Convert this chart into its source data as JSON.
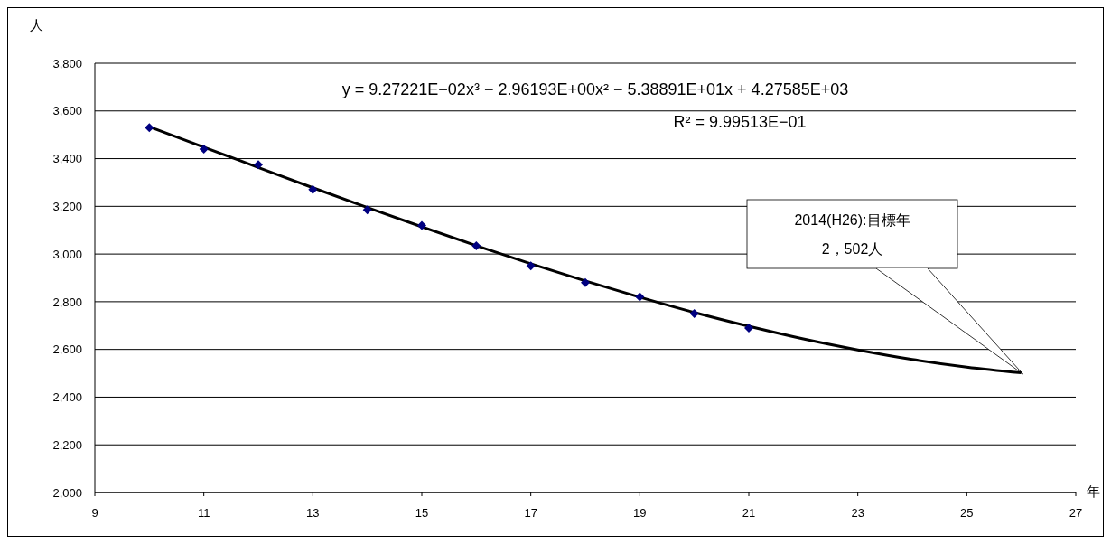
{
  "chart_data": {
    "type": "scatter",
    "xlabel": "年",
    "ylabel": "人",
    "xlim": [
      9,
      27
    ],
    "xticks": [
      9,
      11,
      13,
      15,
      17,
      19,
      21,
      23,
      25,
      27
    ],
    "ylim": [
      2000,
      3800
    ],
    "yticks": [
      {
        "value": 2000,
        "label": "2,000"
      },
      {
        "value": 2200,
        "label": "2,200"
      },
      {
        "value": 2400,
        "label": "2,400"
      },
      {
        "value": 2600,
        "label": "2,600"
      },
      {
        "value": 2800,
        "label": "2,800"
      },
      {
        "value": 3000,
        "label": "3,000"
      },
      {
        "value": 3200,
        "label": "3,200"
      },
      {
        "value": 3400,
        "label": "3,400"
      },
      {
        "value": 3600,
        "label": "3,600"
      },
      {
        "value": 3800,
        "label": "3,800"
      }
    ],
    "grid": "y",
    "legend": false,
    "series": [
      {
        "marker": "diamond",
        "color": "#000080",
        "x": [
          10,
          11,
          12,
          13,
          14,
          15,
          16,
          17,
          18,
          19,
          20,
          21
        ],
        "values": [
          3530,
          3440,
          3375,
          3270,
          3185,
          3120,
          3035,
          2950,
          2880,
          2820,
          2750,
          2690
        ]
      },
      {
        "type": "line",
        "marker": "none",
        "line_style": "solid",
        "color": "#000000",
        "x": [
          10,
          11,
          12,
          13,
          14,
          15,
          16,
          17,
          18,
          19,
          20,
          21,
          22,
          23,
          24,
          25,
          26
        ],
        "values": [
          3534,
          3448,
          3363,
          3278,
          3195,
          3114,
          3035,
          2959,
          2887,
          2819,
          2755,
          2697,
          2644,
          2598,
          2558,
          2526,
          2502
        ]
      }
    ],
    "annotations": [
      "y = 9.27221E−02x³ − 2.96193E+00x² − 5.38891E+01x + 4.27585E+03",
      "R² = 9.99513E−01",
      "2014(H26):目標年\n2，502人"
    ]
  }
}
